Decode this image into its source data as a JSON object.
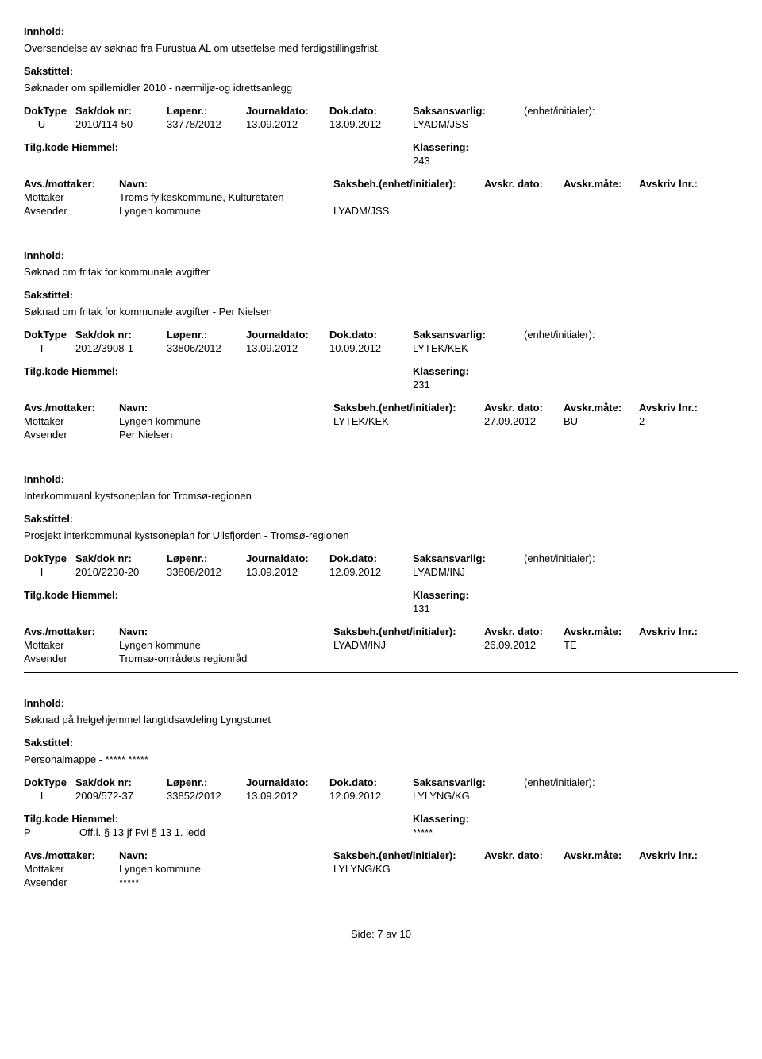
{
  "labels": {
    "innhold": "Innhold:",
    "sakstittel": "Sakstittel:",
    "doktype": "DokType",
    "sakdok": "Sak/dok nr:",
    "lopenr": "Løpenr.:",
    "journaldato": "Journaldato:",
    "dokdato": "Dok.dato:",
    "saksansvarlig": "Saksansvarlig:",
    "enhet": "(enhet/initialer):",
    "tilgkode": "Tilg.kode",
    "hiemmel": "Hiemmel:",
    "klassering": "Klassering:",
    "avsmottaker": "Avs./mottaker:",
    "navn": "Navn:",
    "saksbeh": "Saksbeh.(enhet/initialer):",
    "avskrdato": "Avskr. dato:",
    "avskrmate": "Avskr.måte:",
    "avskrivlnr": "Avskriv lnr.:",
    "mottaker": "Mottaker",
    "avsender": "Avsender"
  },
  "records": [
    {
      "innhold": "Oversendelse av søknad fra Furustua AL om utsettelse med ferdigstillingsfrist.",
      "sakstittel": "Søknader om spillemidler 2010 - nærmiljø-og idrettsanlegg",
      "doktype": "U",
      "sakdok": "2010/114-50",
      "lopenr": "33778/2012",
      "journaldato": "13.09.2012",
      "dokdato": "13.09.2012",
      "saksansvarlig": "LYADM/JSS",
      "tilgkode": "",
      "hiemmel": "",
      "klassering": "243",
      "parties": [
        {
          "role": "Mottaker",
          "navn": "Troms fylkeskommune, Kulturetaten",
          "saksbeh": "",
          "dato": "",
          "mate": "",
          "lnr": ""
        },
        {
          "role": "Avsender",
          "navn": "Lyngen kommune",
          "saksbeh": "LYADM/JSS",
          "dato": "",
          "mate": "",
          "lnr": ""
        }
      ]
    },
    {
      "innhold": "Søknad om fritak for kommunale avgifter",
      "sakstittel": "Søknad om fritak for kommunale avgifter - Per Nielsen",
      "doktype": "I",
      "sakdok": "2012/3908-1",
      "lopenr": "33806/2012",
      "journaldato": "13.09.2012",
      "dokdato": "10.09.2012",
      "saksansvarlig": "LYTEK/KEK",
      "tilgkode": "",
      "hiemmel": "",
      "klassering": "231",
      "parties": [
        {
          "role": "Mottaker",
          "navn": "Lyngen kommune",
          "saksbeh": "LYTEK/KEK",
          "dato": "27.09.2012",
          "mate": "BU",
          "lnr": "2"
        },
        {
          "role": "Avsender",
          "navn": "Per Nielsen",
          "saksbeh": "",
          "dato": "",
          "mate": "",
          "lnr": ""
        }
      ]
    },
    {
      "innhold": "Interkommuanl kystsoneplan for Tromsø-regionen",
      "sakstittel": "Prosjekt interkommunal kystsoneplan for Ullsfjorden - Tromsø-regionen",
      "doktype": "I",
      "sakdok": "2010/2230-20",
      "lopenr": "33808/2012",
      "journaldato": "13.09.2012",
      "dokdato": "12.09.2012",
      "saksansvarlig": "LYADM/INJ",
      "tilgkode": "",
      "hiemmel": "",
      "klassering": "131",
      "parties": [
        {
          "role": "Mottaker",
          "navn": "Lyngen kommune",
          "saksbeh": "LYADM/INJ",
          "dato": "26.09.2012",
          "mate": "TE",
          "lnr": ""
        },
        {
          "role": "Avsender",
          "navn": "Tromsø-områdets regionråd",
          "saksbeh": "",
          "dato": "",
          "mate": "",
          "lnr": ""
        }
      ]
    },
    {
      "innhold": "Søknad på helgehjemmel langtidsavdeling Lyngstunet",
      "sakstittel": "Personalmappe - ***** *****",
      "doktype": "I",
      "sakdok": "2009/572-37",
      "lopenr": "33852/2012",
      "journaldato": "13.09.2012",
      "dokdato": "12.09.2012",
      "saksansvarlig": "LYLYNG/KG",
      "tilgkode": "P",
      "hiemmel": "Off.l. § 13 jf Fvl § 13 1. ledd",
      "klassering": "*****",
      "parties": [
        {
          "role": "Mottaker",
          "navn": "Lyngen kommune",
          "saksbeh": "LYLYNG/KG",
          "dato": "",
          "mate": "",
          "lnr": ""
        },
        {
          "role": "Avsender",
          "navn": "*****",
          "saksbeh": "",
          "dato": "",
          "mate": "",
          "lnr": ""
        }
      ]
    }
  ],
  "footer": {
    "side": "Side:",
    "page": "7",
    "av": "av",
    "total": "10"
  }
}
